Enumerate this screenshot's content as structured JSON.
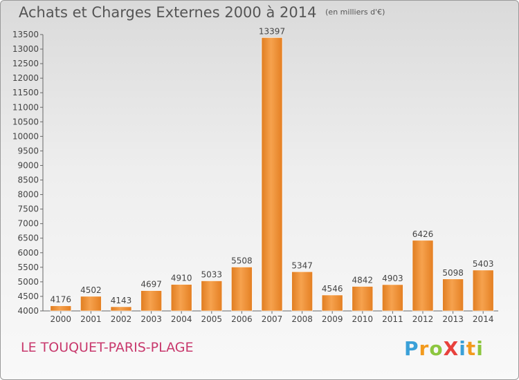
{
  "chart_data": {
    "type": "bar",
    "title": "Achats et Charges Externes 2000 à 2014",
    "subtitle": "(en milliers d'€)",
    "categories": [
      "2000",
      "2001",
      "2002",
      "2003",
      "2004",
      "2005",
      "2006",
      "2007",
      "2008",
      "2009",
      "2010",
      "2011",
      "2012",
      "2013",
      "2014"
    ],
    "values": [
      4176,
      4502,
      4143,
      4697,
      4910,
      5033,
      5508,
      13397,
      5347,
      4546,
      4842,
      4903,
      6426,
      5098,
      5403
    ],
    "ylim": [
      4000,
      13500
    ],
    "yticks": [
      4000,
      4500,
      5000,
      5500,
      6000,
      6500,
      7000,
      7500,
      8000,
      8500,
      9000,
      9500,
      10000,
      10500,
      11000,
      11500,
      12000,
      12500,
      13000,
      13500
    ],
    "grid": false,
    "bar_color": "#f0963c"
  },
  "footer": {
    "place": "LE TOUQUET-PARIS-PLAGE"
  },
  "logo": {
    "text": "ProXiti",
    "letters": [
      {
        "ch": "P",
        "color": "#3aa0d8"
      },
      {
        "ch": "r",
        "color": "#f29a1e"
      },
      {
        "ch": "o",
        "color": "#8cc63f"
      },
      {
        "ch": "X",
        "color": "#e8413c"
      },
      {
        "ch": "i",
        "color": "#3aa0d8"
      },
      {
        "ch": "t",
        "color": "#f29a1e"
      },
      {
        "ch": "i",
        "color": "#8cc63f"
      }
    ]
  }
}
